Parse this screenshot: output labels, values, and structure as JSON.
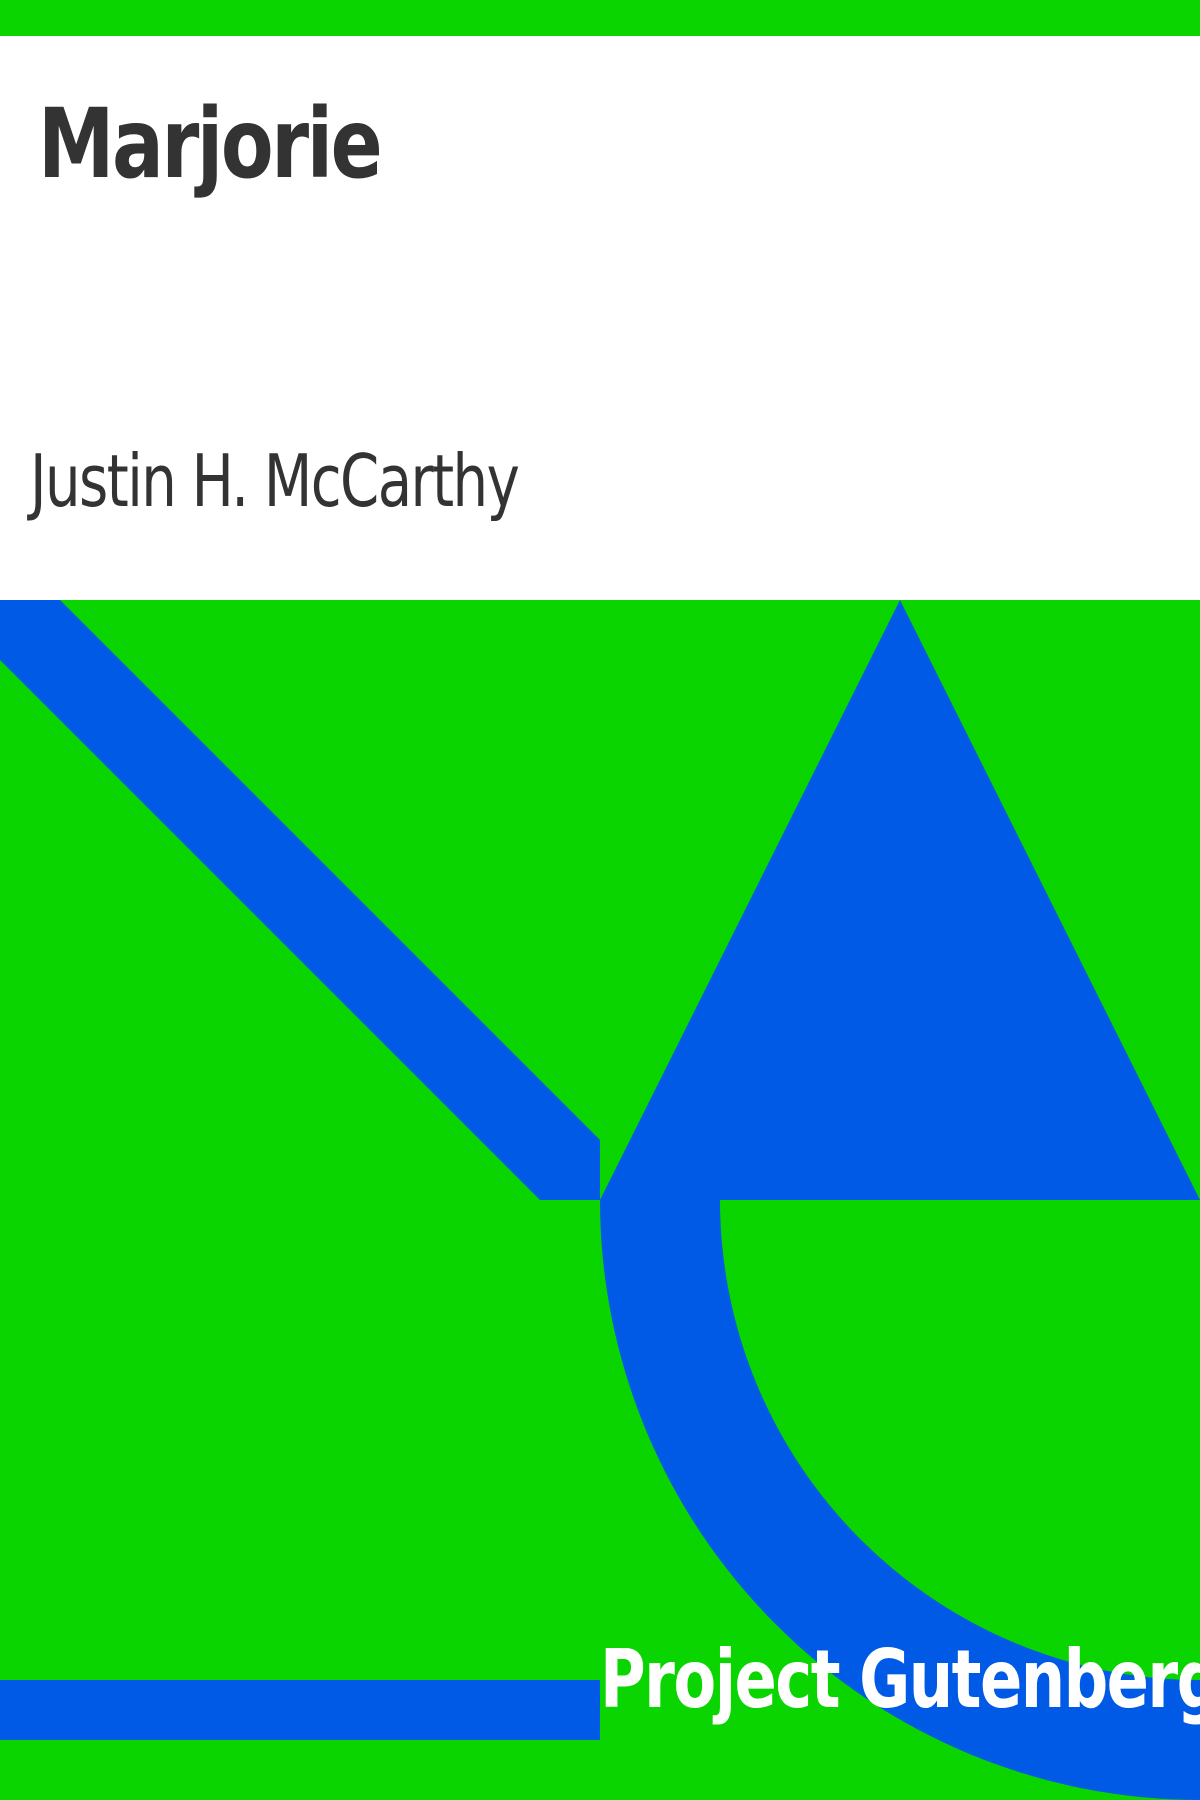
{
  "book": {
    "title": "Marjorie",
    "author": "Justin H. McCarthy"
  },
  "publisher": {
    "name": "Project Gutenberg"
  },
  "colors": {
    "green": "#0ad500",
    "blue": "#005ae6",
    "text": "#333333",
    "background": "#ffffff",
    "brand_text": "#ffffff"
  }
}
